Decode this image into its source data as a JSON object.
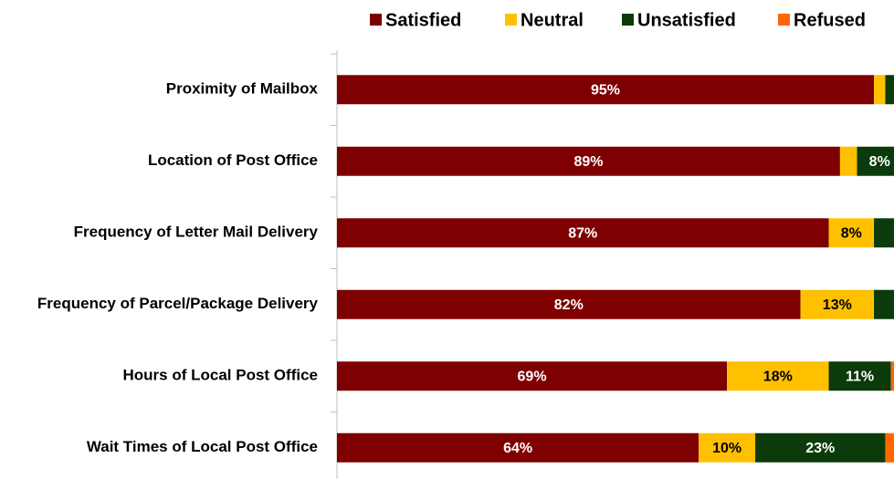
{
  "chart_data": {
    "type": "stacked-barh",
    "categories": [
      "Proximity of Mailbox",
      "Location of Post Office",
      "Frequency of Letter Mail Delivery",
      "Frequency of Parcel/Package Delivery",
      "Hours of Local Post Office",
      "Wait Times of Local Post Office"
    ],
    "series": [
      {
        "name": "Satisfied",
        "color": "#7f0000",
        "label_color": "#ffffff",
        "values": [
          95,
          89,
          87,
          82,
          69,
          64
        ],
        "value_labels": [
          "95%",
          "89%",
          "87%",
          "82%",
          "69%",
          "64%"
        ]
      },
      {
        "name": "Neutral",
        "color": "#ffc000",
        "label_color": "#000000",
        "values": [
          2,
          3,
          8,
          13,
          18,
          10
        ],
        "value_labels": [
          null,
          null,
          "8%",
          "13%",
          "18%",
          "10%"
        ]
      },
      {
        "name": "Unsatisfied",
        "color": "#0b3b0b",
        "label_color": "#ffffff",
        "values": [
          2,
          8,
          5,
          5,
          11,
          23
        ],
        "value_labels": [
          null,
          "8%",
          null,
          null,
          "11%",
          "23%"
        ]
      },
      {
        "name": "Refused",
        "color": "#ff6600",
        "label_color": "#ffffff",
        "values": [
          1,
          0,
          0,
          0,
          2,
          3
        ],
        "value_labels": [
          null,
          null,
          null,
          null,
          null,
          null
        ]
      }
    ],
    "xlim": [
      0,
      100
    ],
    "legend": "top"
  }
}
